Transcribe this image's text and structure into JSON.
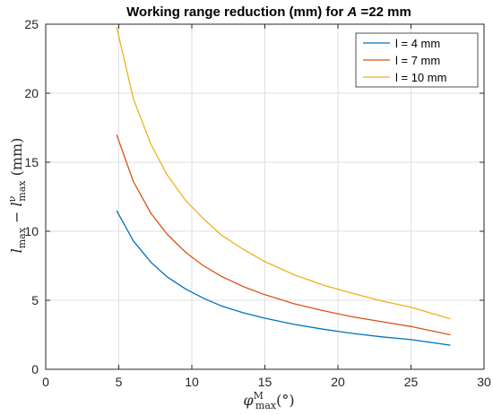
{
  "chart_data": {
    "type": "line",
    "title_prefix": "Working range reduction (mm) for ",
    "title_var": "A",
    "title_suffix": " =22 mm",
    "xlabel": {
      "main": "φ",
      "sup": "M",
      "sub": "max",
      "unit": "(°)"
    },
    "ylabel": {
      "a": "l",
      "a_sub": "max",
      "minus": " − ",
      "b": "l",
      "b_sup": "ν",
      "b_sub": "max",
      "unit": " (mm)"
    },
    "xlim": [
      0,
      30
    ],
    "ylim": [
      0,
      25
    ],
    "xticks": [
      "0",
      "5",
      "10",
      "15",
      "20",
      "25",
      "30"
    ],
    "yticks": [
      "0",
      "5",
      "10",
      "15",
      "20",
      "25"
    ],
    "grid": true,
    "legend_position": "top-right",
    "x": [
      4.85,
      6,
      7.2,
      8.3,
      9.6,
      10.8,
      12,
      13.5,
      15,
      17,
      19,
      21,
      23,
      25,
      27.7
    ],
    "series": [
      {
        "name": "l = 4 mm",
        "color": "#0072BD",
        "values": [
          11.5,
          9.3,
          7.75,
          6.7,
          5.8,
          5.15,
          4.6,
          4.1,
          3.7,
          3.25,
          2.9,
          2.6,
          2.35,
          2.15,
          1.75
        ]
      },
      {
        "name": "l = 7 mm",
        "color": "#D95319",
        "values": [
          17.0,
          13.6,
          11.3,
          9.8,
          8.45,
          7.5,
          6.75,
          6.0,
          5.4,
          4.75,
          4.25,
          3.8,
          3.45,
          3.1,
          2.5
        ]
      },
      {
        "name": "l = 10 mm",
        "color": "#EDB120",
        "values": [
          24.8,
          19.6,
          16.3,
          14.1,
          12.2,
          10.9,
          9.75,
          8.7,
          7.8,
          6.85,
          6.1,
          5.5,
          4.95,
          4.5,
          3.65
        ]
      }
    ]
  }
}
